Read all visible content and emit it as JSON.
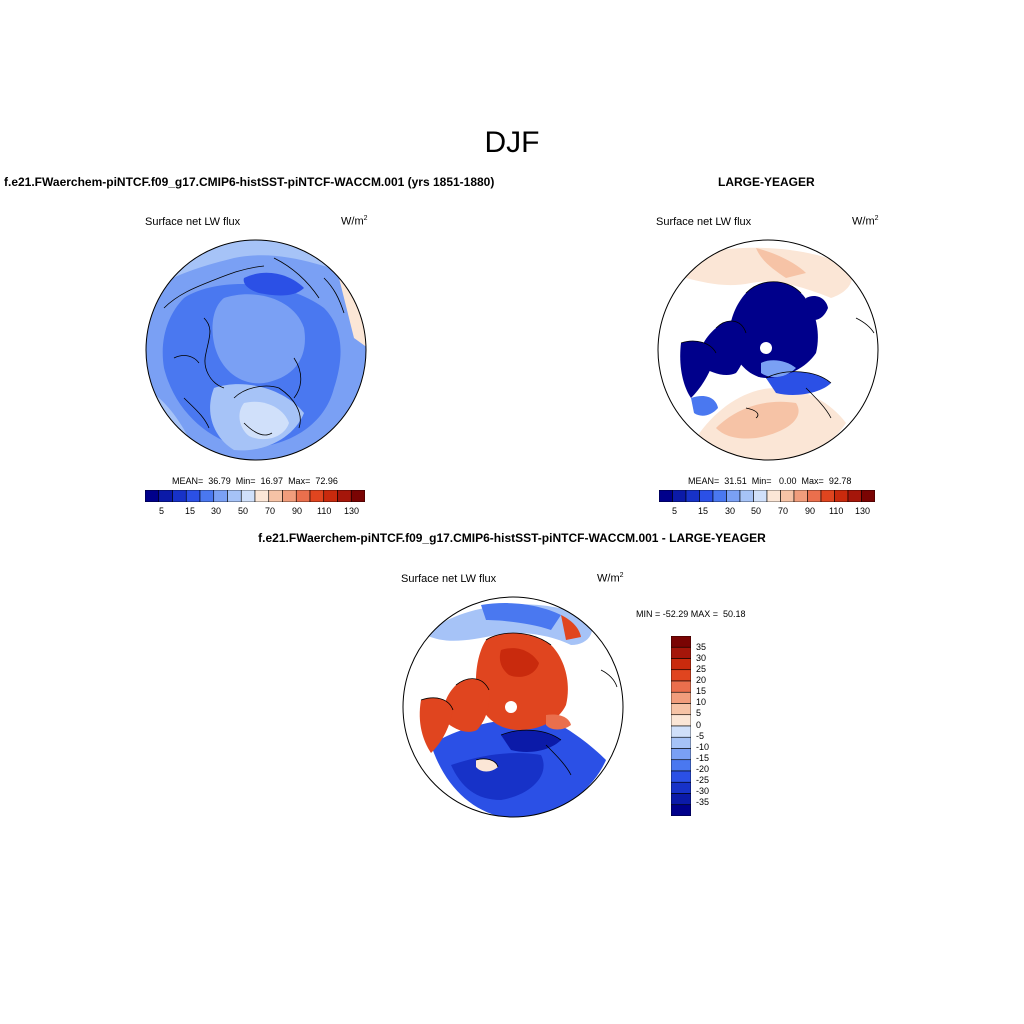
{
  "title": "DJF",
  "panels": [
    {
      "id": "model",
      "case_title": "f.e21.FWaerchem-piNTCF.f09_g17.CMIP6-histSST-piNTCF-WACCM.001 (yrs 1851-1880)",
      "variable": "Surface net LW flux",
      "units": "W/m",
      "units_exp": "2",
      "stats_text": "MEAN=  36.79  Min=  16.97  Max=  72.96",
      "stats": {
        "mean": 36.79,
        "min": 16.97,
        "max": 72.96
      }
    },
    {
      "id": "obs",
      "case_title": "LARGE-YEAGER",
      "variable": "Surface net LW flux",
      "units": "W/m",
      "units_exp": "2",
      "stats_text": "MEAN=  31.51  Min=   0.00  Max=  92.78",
      "stats": {
        "mean": 31.51,
        "min": 0.0,
        "max": 92.78
      }
    },
    {
      "id": "diff",
      "case_title": "f.e21.FWaerchem-piNTCF.f09_g17.CMIP6-histSST-piNTCF-WACCM.001 - LARGE-YEAGER",
      "variable": "Surface net LW flux",
      "units": "W/m",
      "units_exp": "2",
      "stats_text": "MIN = -52.29 MAX =  50.18",
      "stats": {
        "min": -52.29,
        "max": 50.18
      }
    }
  ],
  "colorbar_abs": {
    "tick_labels": [
      "5",
      "15",
      "30",
      "50",
      "70",
      "90",
      "110",
      "130"
    ],
    "colors": [
      "#00008b",
      "#0b1aa8",
      "#1732c8",
      "#2b50e6",
      "#4a78f0",
      "#7aa0f4",
      "#a6c3f7",
      "#d0e0fa",
      "#fbe6d6",
      "#f6c3a6",
      "#f19d7c",
      "#ea6f4d",
      "#e0451f",
      "#c92a0d",
      "#a5160a",
      "#7a0403"
    ]
  },
  "colorbar_diff": {
    "tick_labels": [
      "35",
      "30",
      "25",
      "20",
      "15",
      "10",
      "5",
      "0",
      "-5",
      "-10",
      "-15",
      "-20",
      "-25",
      "-30",
      "-35"
    ],
    "colors": [
      "#7a0403",
      "#a5160a",
      "#c92a0d",
      "#e0451f",
      "#ea6f4d",
      "#f19d7c",
      "#f6c3a6",
      "#fbe6d6",
      "#d0e0fa",
      "#a6c3f7",
      "#7aa0f4",
      "#4a78f0",
      "#2b50e6",
      "#1732c8",
      "#0b1aa8",
      "#00008b"
    ]
  }
}
